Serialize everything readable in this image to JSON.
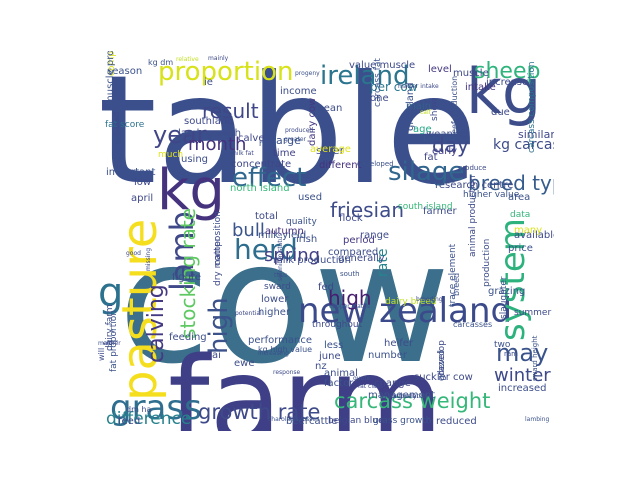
{
  "words": [
    {
      "text": "table",
      "color": "#3b4f8c",
      "rotated": false
    },
    {
      "text": "cow",
      "color": "#3b6f8c",
      "rotated": false
    },
    {
      "text": "farm",
      "color": "#3e3f86",
      "rotated": false
    },
    {
      "text": "new zealand",
      "color": "#3b4a8a",
      "rotated": false
    },
    {
      "text": "carcass weight",
      "color": "#35b779",
      "rotated": false
    },
    {
      "text": "pasture",
      "color": "#f5de1e",
      "rotated": true
    },
    {
      "text": "grass",
      "color": "#2f6e8e",
      "rotated": false
    },
    {
      "text": "growth rate",
      "color": "#3e4a89",
      "rotated": false
    },
    {
      "text": "kg",
      "color": "#46337e",
      "rotated": false
    },
    {
      "text": "kg",
      "color": "#3d4d8a",
      "rotated": false
    },
    {
      "text": "herd",
      "color": "#2e6d8e",
      "rotated": false
    },
    {
      "text": "system",
      "color": "#2db27d",
      "rotated": true
    },
    {
      "text": "g",
      "color": "#2c718e",
      "rotated": false
    },
    {
      "text": "lamb",
      "color": "#3f4889",
      "rotated": true
    },
    {
      "text": "calving",
      "color": "#443983",
      "rotated": true
    },
    {
      "text": "proportion",
      "color": "#d8e219",
      "rotated": false
    },
    {
      "text": "ireland",
      "color": "#2b758e",
      "rotated": false
    },
    {
      "text": "sheep",
      "color": "#2fb47c",
      "rotated": false
    },
    {
      "text": "silage",
      "color": "#31668e",
      "rotated": false
    },
    {
      "text": "effect",
      "color": "#31678e",
      "rotated": false
    },
    {
      "text": "may",
      "color": "#3a538b",
      "rotated": false
    },
    {
      "text": "high",
      "color": "#3b528b",
      "rotated": true
    },
    {
      "text": "breed type",
      "color": "#365c8d",
      "rotated": false
    },
    {
      "text": "year",
      "color": "#404688",
      "rotated": false
    },
    {
      "text": "friesian",
      "color": "#3e4c8a",
      "rotated": false
    },
    {
      "text": "stocking rate",
      "color": "#5ec962",
      "rotated": true
    },
    {
      "text": "result",
      "color": "#3f4788",
      "rotated": false
    },
    {
      "text": "month",
      "color": "#46327e",
      "rotated": false
    },
    {
      "text": "spring",
      "color": "#424086",
      "rotated": false
    },
    {
      "text": "bull",
      "color": "#3a548c",
      "rotated": false
    },
    {
      "text": "day",
      "color": "#3f4889",
      "rotated": false
    },
    {
      "text": "winter",
      "color": "#3e4989",
      "rotated": false
    },
    {
      "text": "difference",
      "color": "#26828e",
      "rotated": false
    },
    {
      "text": "high",
      "color": "#481f70",
      "rotated": false
    },
    {
      "text": "rate",
      "color": "#25848e",
      "rotated": true
    },
    {
      "text": "kg carcass",
      "color": "#3e4c8a",
      "rotated": false
    },
    {
      "text": "dairy cow",
      "color": "#443983",
      "rotated": true
    },
    {
      "text": "level",
      "color": "#453882",
      "rotated": false
    },
    {
      "text": "intake",
      "color": "#453581",
      "rotated": false
    },
    {
      "text": "increase",
      "color": "#3e4a89",
      "rotated": false
    },
    {
      "text": "mean",
      "color": "#3d4e8a",
      "rotated": false
    },
    {
      "text": "grassland",
      "color": "#3b518b",
      "rotated": true
    },
    {
      "text": "per cow",
      "color": "#2a788e",
      "rotated": false
    },
    {
      "text": "per ha",
      "color": "#3a548c",
      "rotated": false
    },
    {
      "text": "age",
      "color": "#22a884",
      "rotated": false
    },
    {
      "text": "similar",
      "color": "#3f4889",
      "rotated": false
    },
    {
      "text": "main",
      "color": "#34608d",
      "rotated": false
    },
    {
      "text": "weaning",
      "color": "#3d4e8a",
      "rotated": false
    },
    {
      "text": "early",
      "color": "#424086",
      "rotated": false
    },
    {
      "text": "fat",
      "color": "#404588",
      "rotated": false
    },
    {
      "text": "steer",
      "color": "#3e4c8a",
      "rotated": false
    },
    {
      "text": "average",
      "color": "#dfe318",
      "rotated": false
    },
    {
      "text": "different",
      "color": "#46327e",
      "rotated": false
    },
    {
      "text": "carcass composition",
      "color": "#2d718e",
      "rotated": true
    },
    {
      "text": "concentrate",
      "color": "#3f4788",
      "rotated": false
    },
    {
      "text": "north island",
      "color": "#35b779",
      "rotated": false
    },
    {
      "text": "used",
      "color": "#3b518b",
      "rotated": false
    },
    {
      "text": "irish",
      "color": "#3d4e8a",
      "rotated": false
    },
    {
      "text": "flock",
      "color": "#3e4a89",
      "rotated": false
    },
    {
      "text": "range",
      "color": "#3e4c8a",
      "rotated": false
    },
    {
      "text": "period",
      "color": "#453882",
      "rotated": false
    },
    {
      "text": "compared",
      "color": "#3d4e8a",
      "rotated": false
    },
    {
      "text": "generally",
      "color": "#3e4a89",
      "rotated": false
    },
    {
      "text": "total",
      "color": "#3e4989",
      "rotated": false
    },
    {
      "text": "milk yield",
      "color": "#3b528b",
      "rotated": false
    },
    {
      "text": "milk production",
      "color": "#3d4e8a",
      "rotated": false
    },
    {
      "text": "quality",
      "color": "#3b528b",
      "rotated": false
    },
    {
      "text": "autumn",
      "color": "#46327e",
      "rotated": false
    },
    {
      "text": "southland",
      "color": "#3e4989",
      "rotated": false
    },
    {
      "text": "lamb growth",
      "color": "#3d4d8a",
      "rotated": false
    },
    {
      "text": "calve",
      "color": "#3f4788",
      "rotated": false
    },
    {
      "text": "large",
      "color": "#3b528b",
      "rotated": false
    },
    {
      "text": "time",
      "color": "#414287",
      "rotated": false
    },
    {
      "text": "fat score",
      "color": "#2c728e",
      "rotated": false
    },
    {
      "text": "using",
      "color": "#3d4e8a",
      "rotated": false
    },
    {
      "text": "low",
      "color": "#3e4a89",
      "rotated": false
    },
    {
      "text": "april",
      "color": "#3f4889",
      "rotated": false
    },
    {
      "text": "important",
      "color": "#3b528b",
      "rotated": false
    },
    {
      "text": "figure",
      "color": "#3e4a89",
      "rotated": false
    },
    {
      "text": "lower",
      "color": "#3d4e8a",
      "rotated": false
    },
    {
      "text": "sward",
      "color": "#3e4c8a",
      "rotated": false
    },
    {
      "text": "higher",
      "color": "#3b528b",
      "rotated": false
    },
    {
      "text": "fed",
      "color": "#3e4989",
      "rotated": false
    },
    {
      "text": "feeding",
      "color": "#3d4e8a",
      "rotated": false
    },
    {
      "text": "performance",
      "color": "#3b528b",
      "rotated": false
    },
    {
      "text": "ai",
      "color": "#3e4a89",
      "rotated": false
    },
    {
      "text": "ewe",
      "color": "#3d4d8a",
      "rotated": false
    },
    {
      "text": "kg high value",
      "color": "#3b528b",
      "rotated": false
    },
    {
      "text": "less",
      "color": "#3b528b",
      "rotated": false
    },
    {
      "text": "june",
      "color": "#3e4a89",
      "rotated": false
    },
    {
      "text": "nz",
      "color": "#3d4e8a",
      "rotated": false
    },
    {
      "text": "animal",
      "color": "#3d4e8a",
      "rotated": false
    },
    {
      "text": "factor",
      "color": "#3b528b",
      "rotated": false
    },
    {
      "text": "number",
      "color": "#3b528b",
      "rotated": false
    },
    {
      "text": "heifer",
      "color": "#3e4c8a",
      "rotated": false
    },
    {
      "text": "change",
      "color": "#3e4a89",
      "rotated": false
    },
    {
      "text": "management",
      "color": "#3b528b",
      "rotated": false
    },
    {
      "text": "suckler cow",
      "color": "#3e4989",
      "rotated": false
    },
    {
      "text": "increased",
      "color": "#3d4e8a",
      "rotated": false
    },
    {
      "text": "two",
      "color": "#3b528b",
      "rotated": false
    },
    {
      "text": "summer",
      "color": "#3e4a89",
      "rotated": false
    },
    {
      "text": "grazing",
      "color": "#3b528b",
      "rotated": false
    },
    {
      "text": "area",
      "color": "#3b528b",
      "rotated": false
    },
    {
      "text": "many",
      "color": "#dce319",
      "rotated": false
    },
    {
      "text": "data",
      "color": "#35b779",
      "rotated": false
    },
    {
      "text": "price",
      "color": "#3b528b",
      "rotated": false
    },
    {
      "text": "available",
      "color": "#3e4a89",
      "rotated": false
    },
    {
      "text": "farmer",
      "color": "#3e4c8a",
      "rotated": false
    },
    {
      "text": "south island",
      "color": "#35b779",
      "rotated": false
    },
    {
      "text": "dairy breed",
      "color": "#c2df23",
      "rotated": false
    },
    {
      "text": "carcasses",
      "color": "#3b528b",
      "rotated": false
    },
    {
      "text": "feed",
      "color": "#3e4a89",
      "rotated": false
    },
    {
      "text": "beef",
      "color": "#3b528b",
      "rotated": false
    },
    {
      "text": "cattle",
      "color": "#3d4e8a",
      "rotated": false
    },
    {
      "text": "belgian blue",
      "color": "#3e4989",
      "rotated": false
    },
    {
      "text": "grass growth",
      "color": "#3b528b",
      "rotated": false
    },
    {
      "text": "reduced",
      "color": "#3e4c8a",
      "rotated": false
    },
    {
      "text": "dm ha",
      "color": "#3d4e8a",
      "rotated": false
    },
    {
      "text": "research centre",
      "color": "#3e4a89",
      "rotated": false
    },
    {
      "text": "higher value",
      "color": "#3b528b",
      "rotated": false
    },
    {
      "text": "value muscle",
      "color": "#3e4a89",
      "rotated": false
    },
    {
      "text": "ie",
      "color": "#3d4e8a",
      "rotated": false
    },
    {
      "text": "muscle",
      "color": "#3e4a89",
      "rotated": false
    },
    {
      "text": "kg dm",
      "color": "#3b528b",
      "rotated": false
    },
    {
      "text": "season",
      "color": "#3b528b",
      "rotated": false
    },
    {
      "text": "comparison",
      "color": "#dfe318",
      "rotated": true
    },
    {
      "text": "much",
      "color": "#dfe318",
      "rotated": false
    },
    {
      "text": "due",
      "color": "#3e4a89",
      "rotated": false
    },
    {
      "text": "income",
      "color": "#3d4e8a",
      "rotated": false
    },
    {
      "text": "one",
      "color": "#3e4a89",
      "rotated": false
    },
    {
      "text": "muscle proportion",
      "color": "#3b528b",
      "rotated": true
    },
    {
      "text": "dairy farm",
      "color": "#3d4e8a",
      "rotated": true
    },
    {
      "text": "fat proportion",
      "color": "#3b528b",
      "rotated": true
    },
    {
      "text": "slaughter",
      "color": "#3d4e8a",
      "rotated": true
    },
    {
      "text": "production",
      "color": "#3d4e8a",
      "rotated": true
    },
    {
      "text": "animal production",
      "color": "#3e4a89",
      "rotated": true
    },
    {
      "text": "trace element",
      "color": "#3b528b",
      "rotated": true
    },
    {
      "text": "composition",
      "color": "#3d4e8a",
      "rotated": true
    },
    {
      "text": "dry matter",
      "color": "#3e4a89",
      "rotated": true
    },
    {
      "text": "grazed",
      "color": "#3b528b",
      "rotated": true
    },
    {
      "text": "develop",
      "color": "#3e4a89",
      "rotated": true
    },
    {
      "text": "beef production",
      "color": "#3b528b",
      "rotated": true
    },
    {
      "text": "based",
      "color": "#3e4a89",
      "rotated": true
    },
    {
      "text": "dairy herd",
      "color": "#3d4e8a",
      "rotated": true
    },
    {
      "text": "breed",
      "color": "#3b528b",
      "rotated": true
    },
    {
      "text": "will",
      "color": "#3e4a89",
      "rotated": true
    },
    {
      "text": "carcass fat",
      "color": "#3b528b",
      "rotated": true
    },
    {
      "text": "show",
      "color": "#3e4a89",
      "rotated": true
    },
    {
      "text": "ha",
      "color": "#3b528b",
      "rotated": false
    },
    {
      "text": "throughout",
      "color": "#3e4a89",
      "rotated": false
    },
    {
      "text": "ram",
      "color": "#3d4e8a",
      "rotated": false
    },
    {
      "text": "south",
      "color": "#3b528b",
      "rotated": false
    },
    {
      "text": "response",
      "color": "#3e4a89",
      "rotated": false
    },
    {
      "text": "developed",
      "color": "#3b528b",
      "rotated": false
    },
    {
      "text": "produce",
      "color": "#3e4a89",
      "rotated": false
    },
    {
      "text": "calf",
      "color": "#c2df23",
      "rotated": false
    },
    {
      "text": "milk fat",
      "color": "#3e4a89",
      "rotated": false
    },
    {
      "text": "relative",
      "color": "#c2df23",
      "rotated": false
    },
    {
      "text": "mainly",
      "color": "#3e4a89",
      "rotated": false
    },
    {
      "text": "major",
      "color": "#3b528b",
      "rotated": false
    },
    {
      "text": "good",
      "color": "#3e4a89",
      "rotated": false
    },
    {
      "text": "charolais crosses",
      "color": "#3b528b",
      "rotated": false
    },
    {
      "text": "breeding",
      "color": "#3e4a89",
      "rotated": false
    },
    {
      "text": "lambing",
      "color": "#3b528b",
      "rotated": false
    },
    {
      "text": "produced",
      "color": "#3e4a89",
      "rotated": false
    },
    {
      "text": "greater",
      "color": "#3b528b",
      "rotated": false
    },
    {
      "text": "matter intake",
      "color": "#3e4a89",
      "rotated": false
    },
    {
      "text": "conformation",
      "color": "#3b528b",
      "rotated": false
    },
    {
      "text": "fat class",
      "color": "#3e4a89",
      "rotated": false
    },
    {
      "text": "quote",
      "color": "#3b528b",
      "rotated": false
    },
    {
      "text": "respectively",
      "color": "#3e4a89",
      "rotated": false
    },
    {
      "text": "copper status",
      "color": "#3b528b",
      "rotated": false
    },
    {
      "text": "potential",
      "color": "#3e4a89",
      "rotated": false
    },
    {
      "text": "thus",
      "color": "#3b528b",
      "rotated": false
    },
    {
      "text": "selenium status",
      "color": "#3d4e8a",
      "rotated": true
    },
    {
      "text": "sward height",
      "color": "#3b528b",
      "rotated": true
    },
    {
      "text": "missing",
      "color": "#3e4a89",
      "rotated": true
    },
    {
      "text": "increasing",
      "color": "#3b528b",
      "rotated": false
    },
    {
      "text": "either",
      "color": "#3e4a89",
      "rotated": false
    },
    {
      "text": "progeny",
      "color": "#3b528b",
      "rotated": false
    }
  ]
}
